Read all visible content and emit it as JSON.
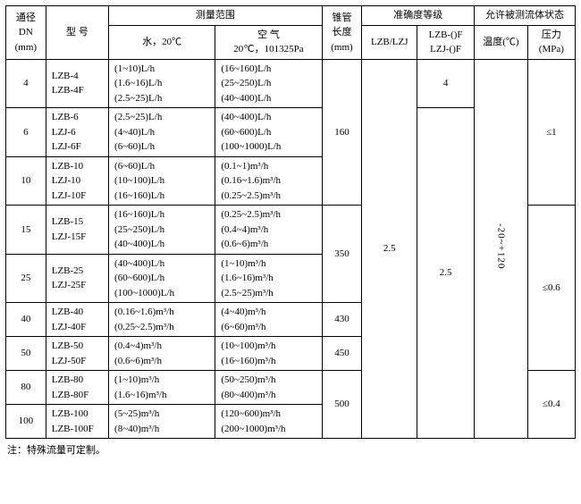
{
  "header": {
    "dn": "通径\nDN\n(mm)",
    "model": "型  号",
    "range": "测量范围",
    "water": "水，20℃",
    "air": "空  气\n20℃，101325Pa",
    "tubeLen": "锥管\n长度\n(mm)",
    "accuracy": "准确度等级",
    "acc1": "LZB/LZJ",
    "acc2": "LZB-()F\nLZJ-()F",
    "fluid": "允许被测流体状态",
    "temp": "温度(℃)",
    "press": "压力\n(MPa)"
  },
  "rows": {
    "dn4": {
      "dn": "4",
      "model": "LZB-4\nLZB-4F",
      "water": "(1~10)L/h\n(1.6~16)L/h\n(2.5~25)L/h",
      "air": "(16~160)L/h\n(25~250)L/h\n(40~400)L/h"
    },
    "dn6": {
      "dn": "6",
      "model": "LZB-6\nLZJ-6\nLZJ-6F",
      "water": "(2.5~25)L/h\n(4~40)L/h\n(6~60)L/h",
      "air": "(40~400)L/h\n(60~600)L/h\n(100~1000)L/h"
    },
    "dn10": {
      "dn": "10",
      "model": "LZB-10\nLZJ-10\nLZJ-10F",
      "water": "(6~60)L/h\n(10~100)L/h\n(16~160)L/h",
      "air": "(0.1~1)m³/h\n(0.16~1.6)m³/h\n(0.25~2.5)m³/h"
    },
    "dn15": {
      "dn": "15",
      "model": "LZB-15\nLZJ-15F",
      "water": "(16~160)L/h\n(25~250)L/h\n(40~400)L/h",
      "air": "(0.25~2.5)m³/h\n(0.4~4)m³/h\n(0.6~6)m³/h"
    },
    "dn25": {
      "dn": "25",
      "model": "LZB-25\nLZJ-25F",
      "water": "(40~400)L/h\n(60~600)L/h\n(100~1000)L/h",
      "air": "(1~10)m³/h\n(1.6~16)m³/h\n(2.5~25)m³/h"
    },
    "dn40": {
      "dn": "40",
      "model": "LZB-40\nLZJ-40F",
      "water": "(0.16~1.6)m³/h\n(0.25~2.5)m³/h",
      "air": "(4~40)m³/h\n(6~60)m³/h"
    },
    "dn50": {
      "dn": "50",
      "model": "LZB-50\nLZJ-50F",
      "water": "(0.4~4)m³/h\n(0.6~6)m³/h",
      "air": "(10~100)m³/h\n(16~160)m³/h"
    },
    "dn80": {
      "dn": "80",
      "model": "LZB-80\nLZB-80F",
      "water": "(1~10)m³/h\n(1.6~16)m³/h",
      "air": "(50~250)m³/h\n(80~400)m³/h"
    },
    "dn100": {
      "dn": "100",
      "model": "LZB-100\nLZB-100F",
      "water": "(5~25)m³/h\n(8~40)m³/h",
      "air": "(120~600)m³/h\n(200~1000)m³/h"
    }
  },
  "spans": {
    "len160": "160",
    "len350": "350",
    "len430": "430",
    "len450": "450",
    "len500": "500",
    "acc_lzb_4": "4",
    "acc_lzb_25": "2.5",
    "acc_f_25": "2.5",
    "temp_range": "-20~+120",
    "press1": "≤1",
    "press06": "≤0.6",
    "press04": "≤0.4"
  },
  "footnote": "注：特殊流量可定制。"
}
